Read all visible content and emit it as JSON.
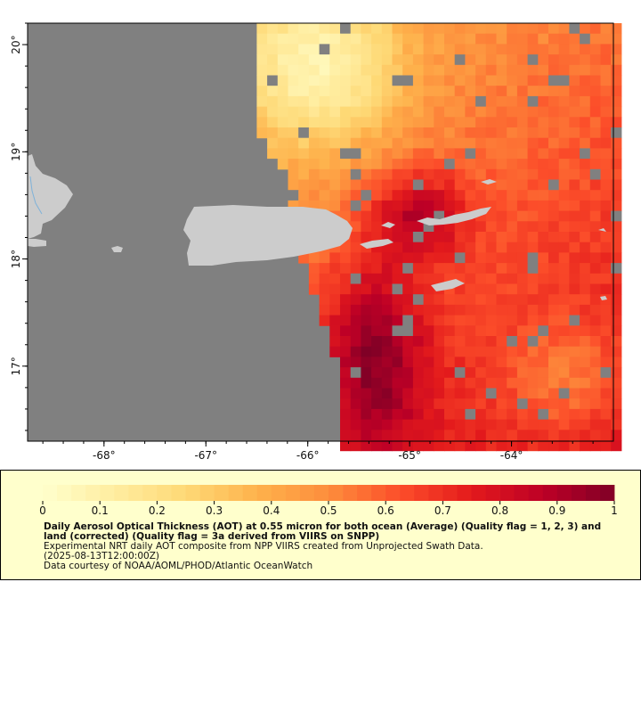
{
  "map": {
    "lon_range": [
      -68.75,
      -63.0
    ],
    "lat_range": [
      16.3,
      20.2
    ],
    "lon_ticks": [
      -68,
      -67,
      -66,
      -65,
      -64
    ],
    "lat_ticks": [
      17,
      18,
      19,
      20
    ],
    "lon_tick_labels": [
      "-68°",
      "-67°",
      "-66°",
      "-65°",
      "-64°"
    ],
    "lat_tick_labels": [
      "17°",
      "18°",
      "19°",
      "20°"
    ],
    "no_data_color": "#808080",
    "land_color": "#cccccc",
    "islands": [
      "Puerto Rico",
      "Hispaniola (east tip)",
      "Virgin Islands",
      "St. Croix",
      "Mona Island"
    ]
  },
  "legend": {
    "background": "#ffffcc",
    "colorbar_min": 0,
    "colorbar_max": 1,
    "colorbar_ticks": [
      "0",
      "0.1",
      "0.2",
      "0.3",
      "0.4",
      "0.5",
      "0.6",
      "0.7",
      "0.8",
      "0.9",
      "1"
    ],
    "colormap": [
      "#ffffcc",
      "#ffeda0",
      "#fed976",
      "#feb24c",
      "#fd8d3c",
      "#fc4e2a",
      "#e31a1c",
      "#bd0026",
      "#800026"
    ],
    "title": "Daily Aerosol Optical Thickness (AOT) at 0.55 micron for both ocean (Average) (Quality flag = 1, 2, 3) and land (corrected) (Quality flag = 3a derived from VIIRS on SNPP)",
    "description": "Experimental NRT daily AOT composite from NPP VIIRS created from Unprojected Swath Data.",
    "time": "(2025-08-13T12:00:00Z)",
    "credit": "Data courtesy of NOAA/AOML/PHOD/Atlantic OceanWatch"
  }
}
